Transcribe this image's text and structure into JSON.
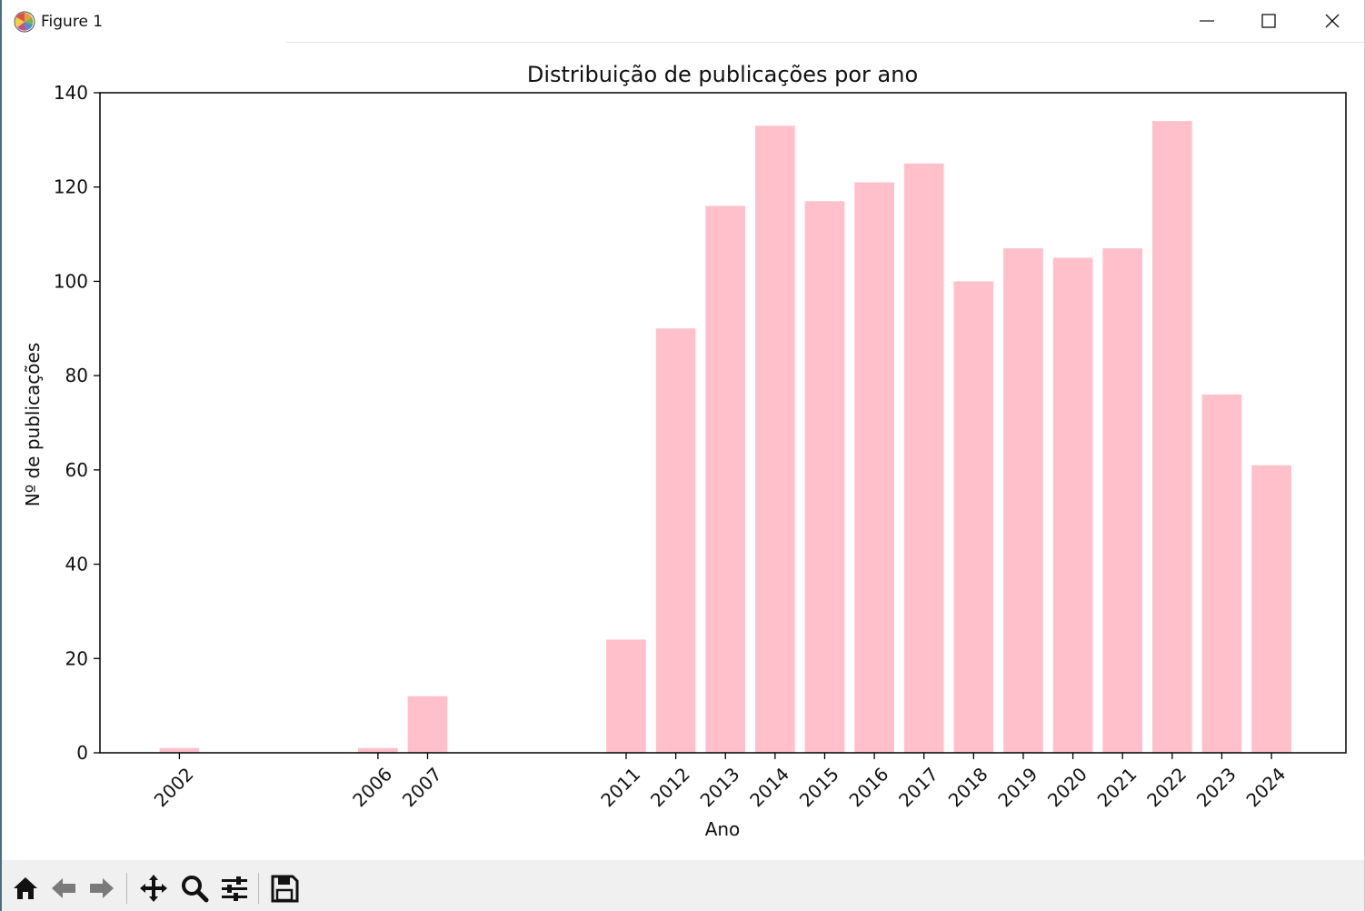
{
  "window": {
    "title": "Figure 1",
    "controls": [
      "minimize-icon",
      "maximize-icon",
      "close-icon"
    ]
  },
  "chart_data": {
    "type": "bar",
    "title": "Distribuição de publicações por ano",
    "xlabel": "Ano",
    "ylabel": "Nº de publicações",
    "x": [
      2002,
      2006,
      2007,
      2011,
      2012,
      2013,
      2014,
      2015,
      2016,
      2017,
      2018,
      2019,
      2020,
      2021,
      2022,
      2023,
      2024
    ],
    "values": [
      1,
      1,
      12,
      24,
      90,
      116,
      133,
      117,
      121,
      125,
      100,
      107,
      105,
      107,
      134,
      76,
      61
    ],
    "xlim": [
      2000.4,
      2025.5
    ],
    "ylim": [
      0,
      140
    ],
    "yticks": [
      0,
      20,
      40,
      60,
      80,
      100,
      120,
      140
    ],
    "bar_color": "#ffc0cb",
    "xtick_rotation": 45,
    "grid": false
  },
  "toolbar": {
    "buttons": [
      "home-icon",
      "back-icon",
      "forward-icon",
      "pan-icon",
      "zoom-icon",
      "configure-icon",
      "save-icon"
    ]
  }
}
